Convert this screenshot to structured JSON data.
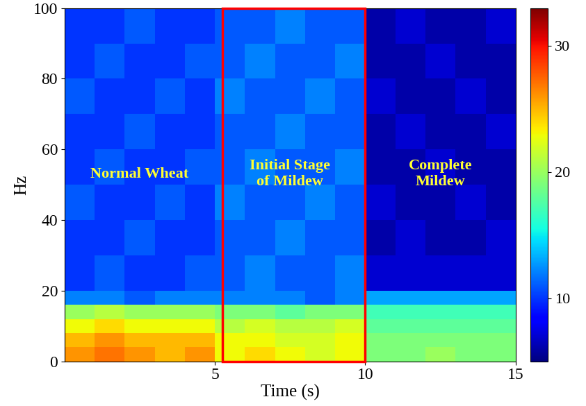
{
  "chart_data": {
    "type": "heatmap",
    "xlabel": "Time (s)",
    "ylabel": "Hz",
    "xlim": [
      0,
      15
    ],
    "ylim": [
      0,
      100
    ],
    "xticks": [
      5,
      10,
      15
    ],
    "yticks": [
      0,
      20,
      40,
      60,
      80,
      100
    ],
    "annotations": [
      "Normal Wheat",
      "Initial Stage\nof Mildew",
      "Complete\nMildew"
    ],
    "highlight_x": [
      5.25,
      10
    ],
    "x_edges": [
      0,
      1,
      2,
      3,
      4,
      5,
      6,
      7,
      8,
      9,
      10,
      11,
      12,
      13,
      14,
      15
    ],
    "y_edges": [
      0,
      4,
      8,
      12,
      16,
      20,
      30,
      40,
      50,
      60,
      70,
      80,
      90,
      100
    ],
    "cells": [
      [
        26,
        27,
        26,
        25,
        26,
        23,
        24,
        23,
        22,
        23,
        19,
        19,
        20,
        19,
        19
      ],
      [
        25,
        26,
        25,
        25,
        25,
        23,
        23,
        22,
        22,
        23,
        19,
        19,
        19,
        19,
        19
      ],
      [
        23,
        24,
        23,
        23,
        23,
        21,
        22,
        21,
        21,
        22,
        18,
        18,
        18,
        18,
        18
      ],
      [
        20,
        21,
        20,
        20,
        20,
        19,
        19,
        18,
        19,
        19,
        17,
        17,
        17,
        17,
        17
      ],
      [
        12,
        12,
        11,
        12,
        12,
        12,
        12,
        12,
        11,
        12,
        13,
        13,
        13,
        13,
        13
      ],
      [
        10,
        11,
        10,
        10,
        11,
        11,
        12,
        11,
        11,
        12,
        7,
        7,
        7,
        7,
        7
      ],
      [
        10,
        10,
        11,
        10,
        10,
        11,
        11,
        12,
        11,
        11,
        6,
        7,
        6,
        6,
        7
      ],
      [
        11,
        10,
        10,
        11,
        10,
        12,
        11,
        11,
        12,
        11,
        7,
        6,
        6,
        7,
        6
      ],
      [
        10,
        11,
        10,
        10,
        11,
        11,
        12,
        11,
        11,
        12,
        6,
        6,
        7,
        6,
        6
      ],
      [
        10,
        10,
        11,
        10,
        10,
        11,
        11,
        12,
        11,
        11,
        6,
        7,
        6,
        6,
        7
      ],
      [
        11,
        10,
        10,
        11,
        10,
        12,
        11,
        11,
        12,
        11,
        7,
        6,
        6,
        7,
        6
      ],
      [
        10,
        11,
        10,
        10,
        11,
        11,
        12,
        11,
        11,
        12,
        6,
        6,
        7,
        6,
        6
      ],
      [
        10,
        10,
        11,
        10,
        10,
        11,
        11,
        12,
        11,
        11,
        6,
        7,
        6,
        6,
        7
      ]
    ],
    "colorbar": {
      "range": [
        5,
        33
      ],
      "ticks": [
        10,
        20,
        30
      ]
    }
  }
}
